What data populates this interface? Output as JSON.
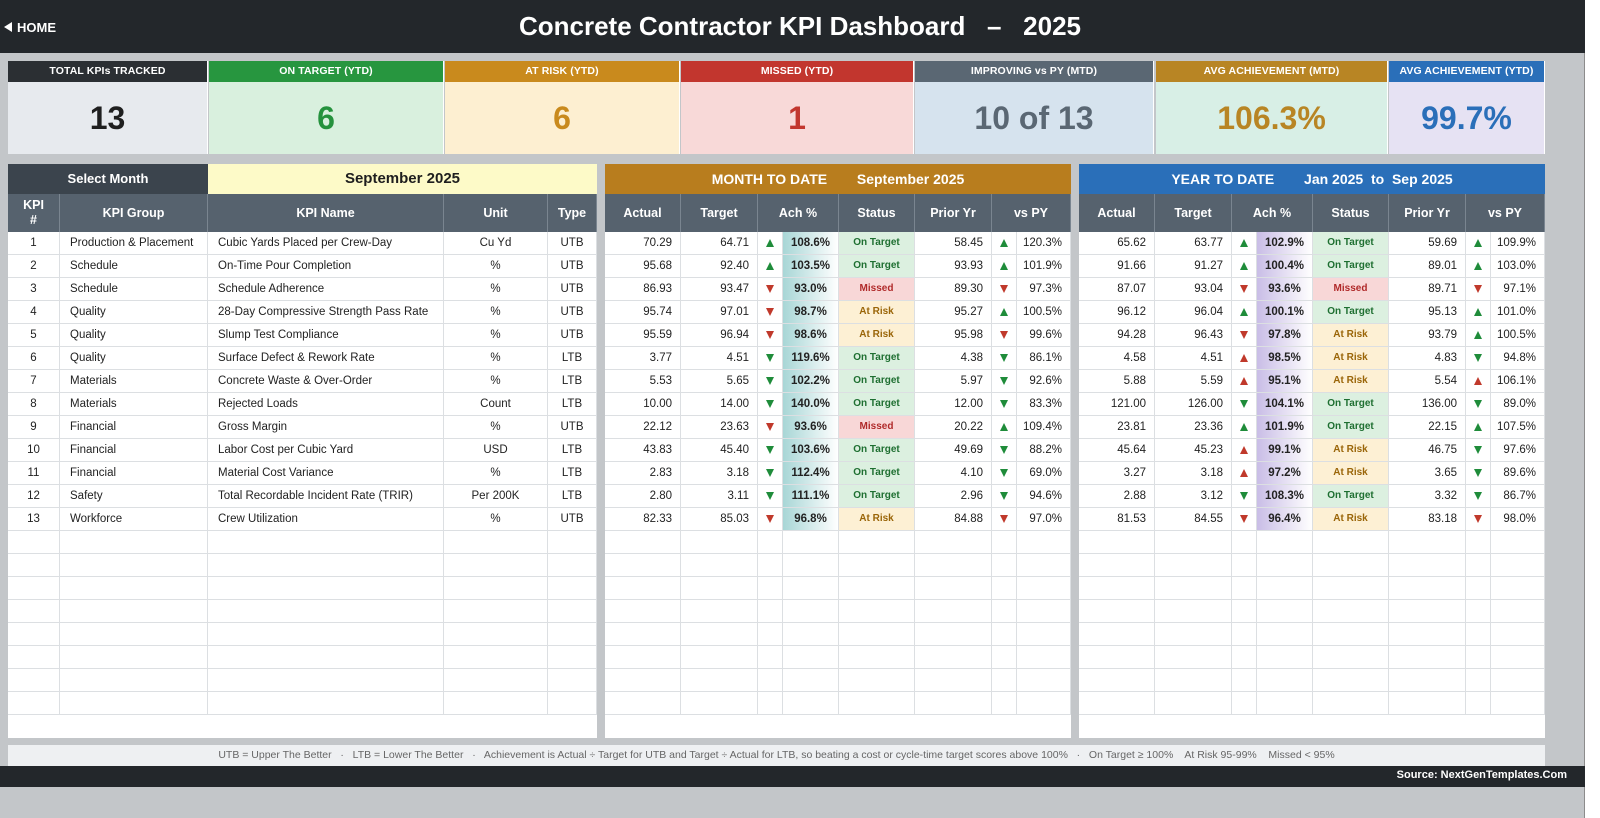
{
  "header": {
    "home_label": "HOME",
    "title": "Concrete Contractor KPI Dashboard   –   2025"
  },
  "cards": [
    {
      "label": "TOTAL KPIs TRACKED",
      "value": "13",
      "head_color": "#2b2f33",
      "bg_color": "#e7eaee",
      "value_color": "#1f1f1f"
    },
    {
      "label": "ON TARGET (YTD)",
      "value": "6",
      "head_color": "#27963f",
      "bg_color": "#d9f0de",
      "value_color": "#25923d"
    },
    {
      "label": "AT RISK (YTD)",
      "value": "6",
      "head_color": "#c98a1d",
      "bg_color": "#fdefd1",
      "value_color": "#c98a1d"
    },
    {
      "label": "MISSED (YTD)",
      "value": "1",
      "head_color": "#c2362e",
      "bg_color": "#f8d9d8",
      "value_color": "#c2362e"
    },
    {
      "label": "IMPROVING vs PY (MTD)",
      "value": "10 of 13",
      "head_color": "#5a6773",
      "bg_color": "#d6e3ee",
      "value_color": "#5a6773"
    },
    {
      "label": "AVG ACHIEVEMENT (MTD)",
      "value": "106.3%",
      "head_color": "#b88524",
      "bg_color": "#d8efe6",
      "value_color": "#b88524"
    },
    {
      "label": "AVG ACHIEVEMENT (YTD)",
      "value": "99.7%",
      "head_color": "#2a6fb9",
      "bg_color": "#e6e2f3",
      "value_color": "#2a6fb9"
    }
  ],
  "left": {
    "select_label": "Select Month",
    "selected_month": "September 2025",
    "columns": [
      "KPI #",
      "KPI Group",
      "KPI Name",
      "Unit",
      "Type"
    ]
  },
  "mtd": {
    "title": "MONTH TO DATE",
    "period": "September 2025",
    "columns": [
      "Actual",
      "Target",
      "Ach %",
      "Status",
      "Prior Yr",
      "vs PY"
    ]
  },
  "ytd": {
    "title": "YEAR TO DATE",
    "period": "Jan 2025  to  Sep 2025",
    "columns": [
      "Actual",
      "Target",
      "Ach %",
      "Status",
      "Prior Yr",
      "vs PY"
    ]
  },
  "kpis": [
    {
      "num": "1",
      "group": "Production & Placement",
      "name": "Cubic Yards Placed per Crew-Day",
      "unit": "Cu Yd",
      "type": "UTB",
      "mtd": {
        "actual": "70.29",
        "target": "64.71",
        "ach_dir": "up-g",
        "ach": "108.6%",
        "status": "On Target",
        "prior": "58.45",
        "vspy_dir": "up-g",
        "vspy": "120.3%"
      },
      "ytd": {
        "actual": "65.62",
        "target": "63.77",
        "ach_dir": "up-g",
        "ach": "102.9%",
        "status": "On Target",
        "prior": "59.69",
        "vspy_dir": "up-g",
        "vspy": "109.9%"
      }
    },
    {
      "num": "2",
      "group": "Schedule",
      "name": "On-Time Pour Completion",
      "unit": "%",
      "type": "UTB",
      "mtd": {
        "actual": "95.68",
        "target": "92.40",
        "ach_dir": "up-g",
        "ach": "103.5%",
        "status": "On Target",
        "prior": "93.93",
        "vspy_dir": "up-g",
        "vspy": "101.9%"
      },
      "ytd": {
        "actual": "91.66",
        "target": "91.27",
        "ach_dir": "up-g",
        "ach": "100.4%",
        "status": "On Target",
        "prior": "89.01",
        "vspy_dir": "up-g",
        "vspy": "103.0%"
      }
    },
    {
      "num": "3",
      "group": "Schedule",
      "name": "Schedule Adherence",
      "unit": "%",
      "type": "UTB",
      "mtd": {
        "actual": "86.93",
        "target": "93.47",
        "ach_dir": "dn-r",
        "ach": "93.0%",
        "status": "Missed",
        "prior": "89.30",
        "vspy_dir": "dn-r",
        "vspy": "97.3%"
      },
      "ytd": {
        "actual": "87.07",
        "target": "93.04",
        "ach_dir": "dn-r",
        "ach": "93.6%",
        "status": "Missed",
        "prior": "89.71",
        "vspy_dir": "dn-r",
        "vspy": "97.1%"
      }
    },
    {
      "num": "4",
      "group": "Quality",
      "name": "28-Day Compressive Strength Pass Rate",
      "unit": "%",
      "type": "UTB",
      "mtd": {
        "actual": "95.74",
        "target": "97.01",
        "ach_dir": "dn-r",
        "ach": "98.7%",
        "status": "At Risk",
        "prior": "95.27",
        "vspy_dir": "up-g",
        "vspy": "100.5%"
      },
      "ytd": {
        "actual": "96.12",
        "target": "96.04",
        "ach_dir": "up-g",
        "ach": "100.1%",
        "status": "On Target",
        "prior": "95.13",
        "vspy_dir": "up-g",
        "vspy": "101.0%"
      }
    },
    {
      "num": "5",
      "group": "Quality",
      "name": "Slump Test Compliance",
      "unit": "%",
      "type": "UTB",
      "mtd": {
        "actual": "95.59",
        "target": "96.94",
        "ach_dir": "dn-r",
        "ach": "98.6%",
        "status": "At Risk",
        "prior": "95.98",
        "vspy_dir": "dn-r",
        "vspy": "99.6%"
      },
      "ytd": {
        "actual": "94.28",
        "target": "96.43",
        "ach_dir": "dn-r",
        "ach": "97.8%",
        "status": "At Risk",
        "prior": "93.79",
        "vspy_dir": "up-g",
        "vspy": "100.5%"
      }
    },
    {
      "num": "6",
      "group": "Quality",
      "name": "Surface Defect & Rework Rate",
      "unit": "%",
      "type": "LTB",
      "mtd": {
        "actual": "3.77",
        "target": "4.51",
        "ach_dir": "dn-g",
        "ach": "119.6%",
        "status": "On Target",
        "prior": "4.38",
        "vspy_dir": "dn-g",
        "vspy": "86.1%"
      },
      "ytd": {
        "actual": "4.58",
        "target": "4.51",
        "ach_dir": "up-r",
        "ach": "98.5%",
        "status": "At Risk",
        "prior": "4.83",
        "vspy_dir": "dn-g",
        "vspy": "94.8%"
      }
    },
    {
      "num": "7",
      "group": "Materials",
      "name": "Concrete Waste & Over-Order",
      "unit": "%",
      "type": "LTB",
      "mtd": {
        "actual": "5.53",
        "target": "5.65",
        "ach_dir": "dn-g",
        "ach": "102.2%",
        "status": "On Target",
        "prior": "5.97",
        "vspy_dir": "dn-g",
        "vspy": "92.6%"
      },
      "ytd": {
        "actual": "5.88",
        "target": "5.59",
        "ach_dir": "up-r",
        "ach": "95.1%",
        "status": "At Risk",
        "prior": "5.54",
        "vspy_dir": "up-r",
        "vspy": "106.1%"
      }
    },
    {
      "num": "8",
      "group": "Materials",
      "name": "Rejected Loads",
      "unit": "Count",
      "type": "LTB",
      "mtd": {
        "actual": "10.00",
        "target": "14.00",
        "ach_dir": "dn-g",
        "ach": "140.0%",
        "status": "On Target",
        "prior": "12.00",
        "vspy_dir": "dn-g",
        "vspy": "83.3%"
      },
      "ytd": {
        "actual": "121.00",
        "target": "126.00",
        "ach_dir": "dn-g",
        "ach": "104.1%",
        "status": "On Target",
        "prior": "136.00",
        "vspy_dir": "dn-g",
        "vspy": "89.0%"
      }
    },
    {
      "num": "9",
      "group": "Financial",
      "name": "Gross Margin",
      "unit": "%",
      "type": "UTB",
      "mtd": {
        "actual": "22.12",
        "target": "23.63",
        "ach_dir": "dn-r",
        "ach": "93.6%",
        "status": "Missed",
        "prior": "20.22",
        "vspy_dir": "up-g",
        "vspy": "109.4%"
      },
      "ytd": {
        "actual": "23.81",
        "target": "23.36",
        "ach_dir": "up-g",
        "ach": "101.9%",
        "status": "On Target",
        "prior": "22.15",
        "vspy_dir": "up-g",
        "vspy": "107.5%"
      }
    },
    {
      "num": "10",
      "group": "Financial",
      "name": "Labor Cost per Cubic Yard",
      "unit": "USD",
      "type": "LTB",
      "mtd": {
        "actual": "43.83",
        "target": "45.40",
        "ach_dir": "dn-g",
        "ach": "103.6%",
        "status": "On Target",
        "prior": "49.69",
        "vspy_dir": "dn-g",
        "vspy": "88.2%"
      },
      "ytd": {
        "actual": "45.64",
        "target": "45.23",
        "ach_dir": "up-r",
        "ach": "99.1%",
        "status": "At Risk",
        "prior": "46.75",
        "vspy_dir": "dn-g",
        "vspy": "97.6%"
      }
    },
    {
      "num": "11",
      "group": "Financial",
      "name": "Material Cost Variance",
      "unit": "%",
      "type": "LTB",
      "mtd": {
        "actual": "2.83",
        "target": "3.18",
        "ach_dir": "dn-g",
        "ach": "112.4%",
        "status": "On Target",
        "prior": "4.10",
        "vspy_dir": "dn-g",
        "vspy": "69.0%"
      },
      "ytd": {
        "actual": "3.27",
        "target": "3.18",
        "ach_dir": "up-r",
        "ach": "97.2%",
        "status": "At Risk",
        "prior": "3.65",
        "vspy_dir": "dn-g",
        "vspy": "89.6%"
      }
    },
    {
      "num": "12",
      "group": "Safety",
      "name": "Total Recordable Incident Rate (TRIR)",
      "unit": "Per 200K",
      "type": "LTB",
      "mtd": {
        "actual": "2.80",
        "target": "3.11",
        "ach_dir": "dn-g",
        "ach": "111.1%",
        "status": "On Target",
        "prior": "2.96",
        "vspy_dir": "dn-g",
        "vspy": "94.6%"
      },
      "ytd": {
        "actual": "2.88",
        "target": "3.12",
        "ach_dir": "dn-g",
        "ach": "108.3%",
        "status": "On Target",
        "prior": "3.32",
        "vspy_dir": "dn-g",
        "vspy": "86.7%"
      }
    },
    {
      "num": "13",
      "group": "Workforce",
      "name": "Crew Utilization",
      "unit": "%",
      "type": "UTB",
      "mtd": {
        "actual": "82.33",
        "target": "85.03",
        "ach_dir": "dn-r",
        "ach": "96.8%",
        "status": "At Risk",
        "prior": "84.88",
        "vspy_dir": "dn-r",
        "vspy": "97.0%"
      },
      "ytd": {
        "actual": "81.53",
        "target": "84.55",
        "ach_dir": "dn-r",
        "ach": "96.4%",
        "status": "At Risk",
        "prior": "83.18",
        "vspy_dir": "dn-r",
        "vspy": "98.0%"
      }
    }
  ],
  "footer": {
    "note": "UTB = Upper The Better   ·   LTB = Lower The Better   ·   Achievement is Actual ÷ Target for UTB and Target ÷ Actual for LTB, so beating a cost or cycle-time target scores above 100%   ·   On Target ≥ 100%    At Risk 95-99%    Missed < 95%",
    "source": "Source: NextGenTemplates.Com"
  },
  "colors": {
    "header_bg": "#23272b",
    "left_bar_bg": "#3b444d",
    "month_cell_bg": "#fdfac8",
    "mtd_bar_bg": "#b87d1e",
    "ytd_bar_bg": "#2a6fb9",
    "mtd_ach_gradient": "#a8d6d6",
    "ytd_ach_gradient": "#c9bde6"
  }
}
